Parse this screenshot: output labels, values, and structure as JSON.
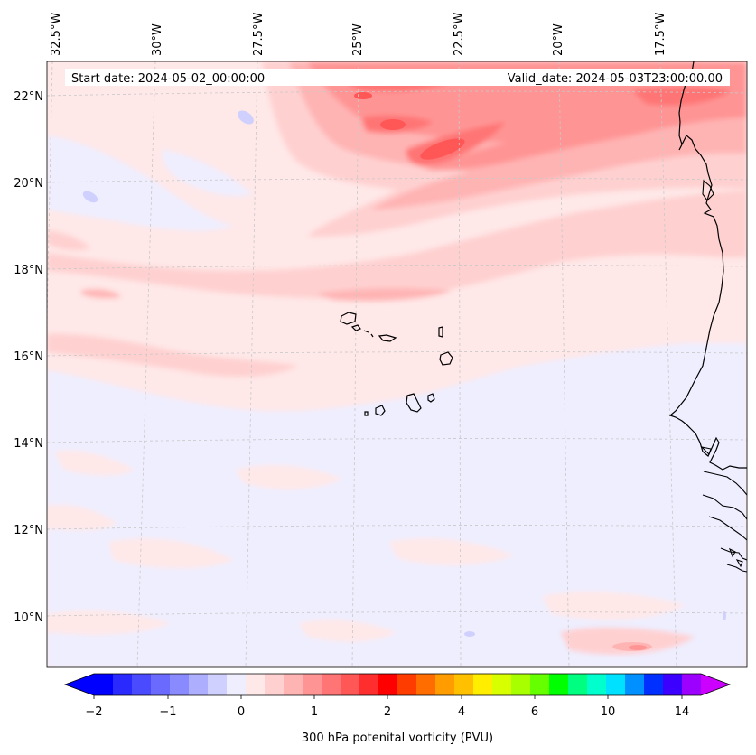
{
  "header": {
    "start_date": "Start date: 2024-05-02_00:00:00",
    "valid_date": "Valid_date: 2024-05-03T23:00:00.00"
  },
  "map": {
    "lon_labels": [
      "32.5°W",
      "30°W",
      "27.5°W",
      "25°W",
      "22.5°W",
      "20°W",
      "17.5°W"
    ],
    "lat_labels": [
      "22°N",
      "20°N",
      "18°N",
      "16°N",
      "14°N",
      "12°N",
      "10°N"
    ],
    "gridlines": "dashed",
    "coastline_region": "West Africa coast and Cape Verde islands"
  },
  "colorbar": {
    "label": "300 hPa potenital vorticity (PVU)",
    "tick_labels": [
      "−2",
      "−1",
      "0",
      "1",
      "2",
      "4",
      "6",
      "10",
      "14"
    ],
    "colors": [
      "#0000ff",
      "#2a2aff",
      "#4a4aff",
      "#6a6aff",
      "#8a8aff",
      "#aeaeff",
      "#d0d0ff",
      "#eeeeff",
      "#ffe8e8",
      "#ffd0d0",
      "#ffb4b4",
      "#ff9494",
      "#ff7474",
      "#ff5656",
      "#ff2e2e",
      "#ff0000",
      "#ff3c00",
      "#ff6c00",
      "#ff9c00",
      "#ffc000",
      "#ffee00",
      "#d8ff00",
      "#a8ff00",
      "#66ff00",
      "#00ff00",
      "#00ff80",
      "#00ffcc",
      "#00e0ff",
      "#0090ff",
      "#0030ff",
      "#3c00ff",
      "#9c00ff"
    ],
    "under_color": "#0000ff",
    "over_color": "#cc00ff"
  }
}
